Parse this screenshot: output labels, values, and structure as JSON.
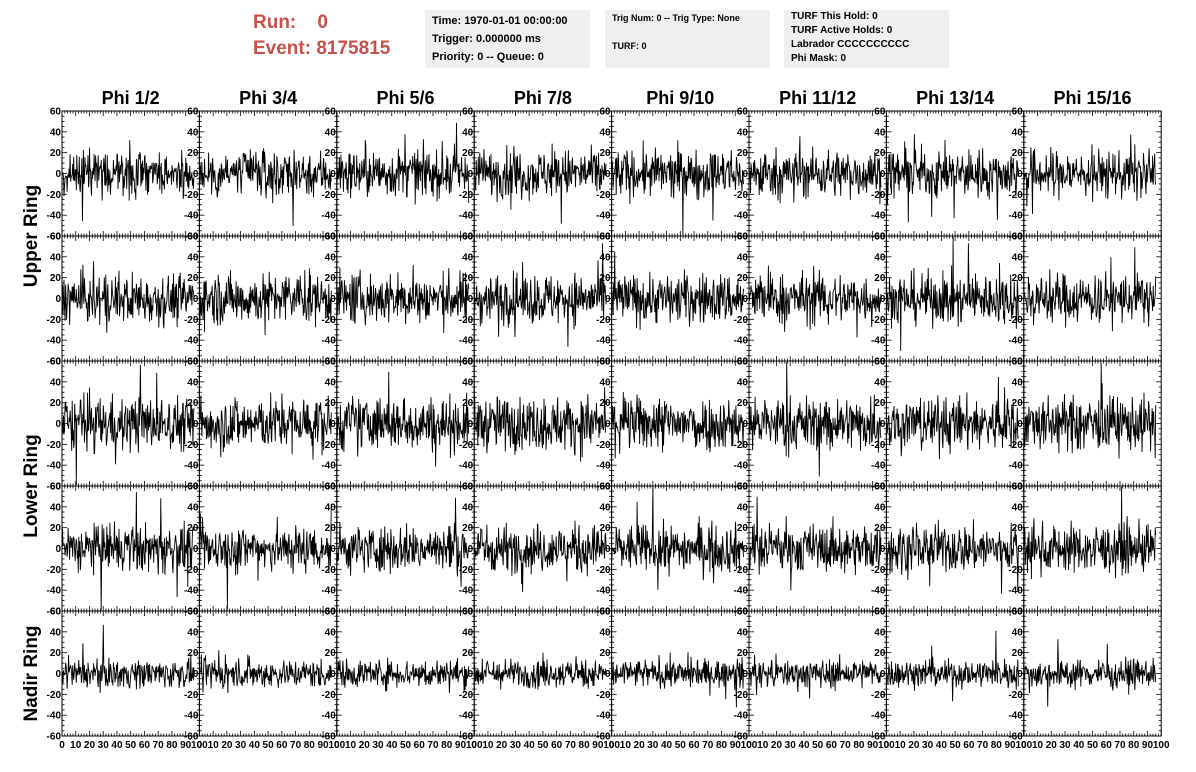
{
  "header": {
    "run_label": "Run:",
    "run_value": "0",
    "event_label": "Event:",
    "event_value": "8175815"
  },
  "info_time": {
    "time": "Time: 1970-01-01 00:00:00",
    "trigger": "Trigger: 0.000000 ms",
    "priority": "Priority: 0 -- Queue: 0"
  },
  "info_trig": {
    "trig": "Trig Num: 0 -- Trig Type: None",
    "turf": "TURF: 0"
  },
  "info_turf": {
    "hold": "TURF This Hold: 0",
    "active": "TURF Active Holds: 0",
    "labrador": "Labrador CCCCCCCCCC",
    "phimask": "Phi Mask: 0"
  },
  "chart_data": {
    "type": "line",
    "columns": [
      "Phi 1/2",
      "Phi 3/4",
      "Phi 5/6",
      "Phi 7/8",
      "Phi 9/10",
      "Phi 11/12",
      "Phi 13/14",
      "Phi 15/16"
    ],
    "row_groups": [
      {
        "label": "Upper Ring",
        "rows": [
          0,
          1
        ]
      },
      {
        "label": "Lower Ring",
        "rows": [
          2,
          3
        ]
      },
      {
        "label": "Nadir Ring",
        "rows": [
          4
        ]
      }
    ],
    "rows": 5,
    "xlim": [
      0,
      100
    ],
    "ylim": [
      -60,
      60
    ],
    "x_ticks": [
      0,
      10,
      20,
      30,
      40,
      50,
      60,
      70,
      80,
      90,
      100
    ],
    "y_ticks": [
      -60,
      -40,
      -20,
      0,
      20,
      40,
      60
    ],
    "samples_per_trace": 260,
    "trace_x_range": [
      0,
      96
    ],
    "row_amplitude": [
      15,
      16,
      17,
      15,
      9
    ],
    "line_color": "#000000"
  }
}
